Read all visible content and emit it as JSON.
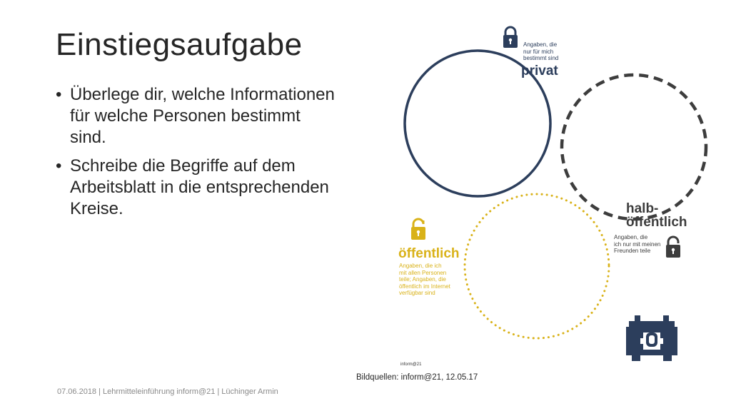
{
  "slide": {
    "title": "Einstiegsaufgabe",
    "bullets": [
      "Überlege dir, welche Informationen für welche Personen bestimmt sind.",
      "Schreibe die Begriffe auf dem Arbeitsblatt in die entsprechenden Kreise."
    ],
    "bullet_glyph": "•",
    "footer": "07.06.2018 | Lehrmitteleinführung inform@21 | Lüchinger Armin",
    "image_source": "Bildquellen: inform@21, 12.05.17"
  },
  "diagram": {
    "privat": {
      "description_lines": [
        "Angaben, die",
        "nur für mich",
        "bestimmt sind"
      ],
      "heading": "privat",
      "color": "#2c3e5c",
      "icon": "lock-closed-icon"
    },
    "halb_oeffentlich": {
      "heading_lines": [
        "halb-",
        "öffentlich"
      ],
      "description_lines": [
        "Angaben, die",
        "ich nur mit meinen",
        "Freunden teile"
      ],
      "color": "#3d3d3d",
      "icon": "lock-half-icon"
    },
    "oeffentlich": {
      "heading": "öffentlich",
      "description_lines": [
        "Angaben, die ich",
        "mit allen Personen",
        "teile; Angaben, die",
        "öffentlich im Internet",
        "verfügbar sind"
      ],
      "color": "#d9b219",
      "icon": "lock-open-icon"
    },
    "logo_text": "inform@21",
    "mascot_icon": "space-invader-icon",
    "mascot_color": "#2c3e5c"
  }
}
